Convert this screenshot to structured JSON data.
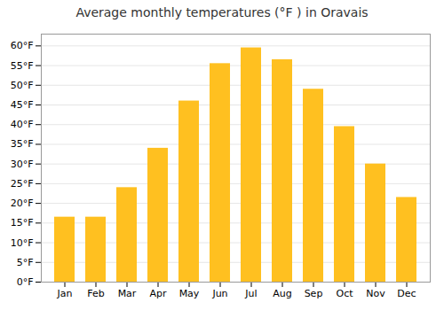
{
  "chart_data": {
    "type": "bar",
    "title": "Average monthly temperatures (°F ) in Oravais",
    "categories": [
      "Jan",
      "Feb",
      "Mar",
      "Apr",
      "May",
      "Jun",
      "Jul",
      "Aug",
      "Sep",
      "Oct",
      "Nov",
      "Dec"
    ],
    "values": [
      16.5,
      16.5,
      24.0,
      34.0,
      46.0,
      55.5,
      59.5,
      56.5,
      49.0,
      39.5,
      30.0,
      21.5
    ],
    "color": "#FFC020",
    "ylim": [
      0,
      63
    ],
    "yticks": [
      {
        "value": 0,
        "label": "0°F"
      },
      {
        "value": 5,
        "label": "5°F"
      },
      {
        "value": 10,
        "label": "10°F"
      },
      {
        "value": 15,
        "label": "15°F"
      },
      {
        "value": 20,
        "label": "20°F"
      },
      {
        "value": 25,
        "label": "25°F"
      },
      {
        "value": 30,
        "label": "30°F"
      },
      {
        "value": 35,
        "label": "35°F"
      },
      {
        "value": 40,
        "label": "40°F"
      },
      {
        "value": 45,
        "label": "45°F"
      },
      {
        "value": 50,
        "label": "50°F"
      },
      {
        "value": 55,
        "label": "55°F"
      },
      {
        "value": 60,
        "label": "60°F"
      }
    ],
    "grid": true
  }
}
